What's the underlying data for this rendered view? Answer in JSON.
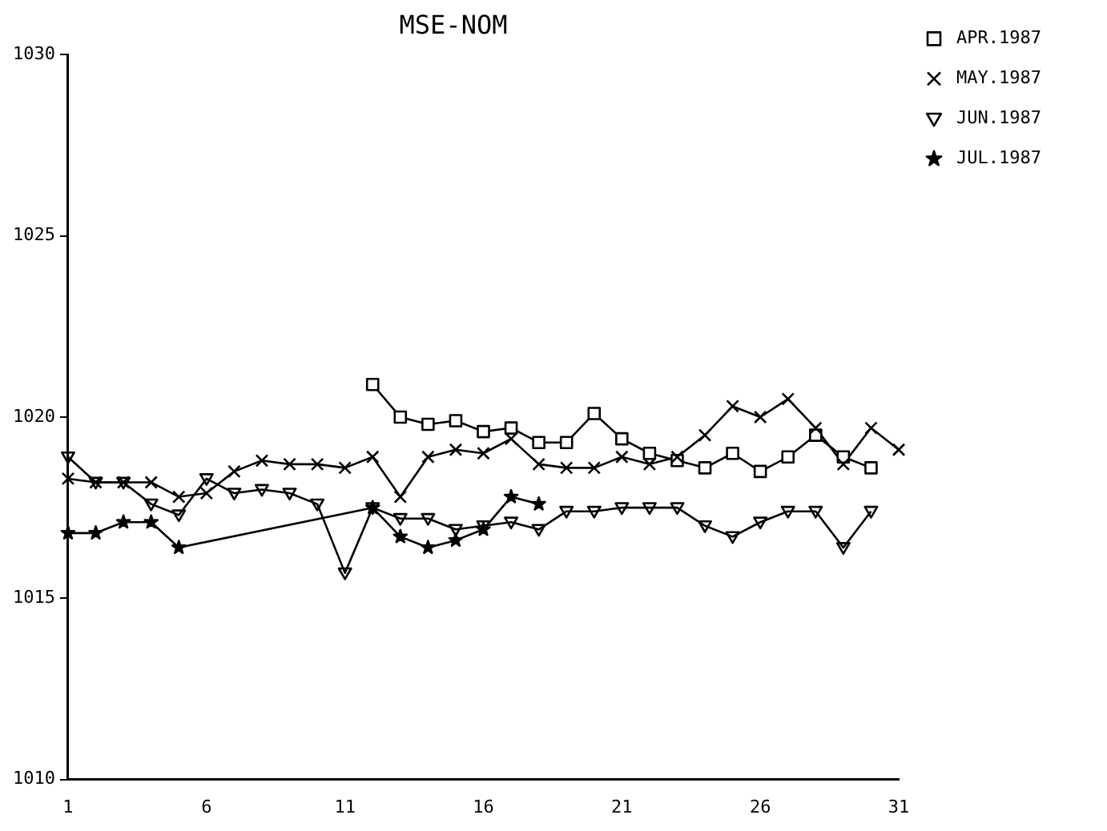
{
  "chart_data": {
    "type": "line",
    "title": "MSE-NOM",
    "xlim": [
      1,
      31
    ],
    "xticks": [
      1,
      6,
      11,
      16,
      21,
      26,
      31
    ],
    "ylim": [
      1010,
      1030
    ],
    "yticks": [
      1010,
      1015,
      1020,
      1025,
      1030
    ],
    "grid": false,
    "legend": "top right",
    "line_style": "solid",
    "series": [
      {
        "name": "APR.1987",
        "color": "#000000",
        "marker": "square",
        "x": [
          12,
          13,
          14,
          15,
          16,
          17,
          18,
          19,
          20,
          21,
          22,
          23,
          24,
          25,
          26,
          27,
          28,
          29,
          30
        ],
        "values": [
          1020.9,
          1020.0,
          1019.8,
          1019.9,
          1019.6,
          1019.7,
          1019.3,
          1019.3,
          1020.1,
          1019.4,
          1019.0,
          1018.8,
          1018.6,
          1019.0,
          1018.5,
          1018.9,
          1019.5,
          1018.9,
          1018.6
        ]
      },
      {
        "name": "MAY.1987",
        "color": "#000000",
        "marker": "cross",
        "x": [
          1,
          2,
          3,
          4,
          5,
          6,
          7,
          8,
          9,
          10,
          11,
          12,
          13,
          14,
          15,
          16,
          17,
          18,
          19,
          20,
          21,
          22,
          23,
          24,
          25,
          26,
          27,
          28,
          29,
          30,
          31
        ],
        "values": [
          1018.3,
          1018.2,
          1018.2,
          1018.2,
          1017.8,
          1017.9,
          1018.5,
          1018.8,
          1018.7,
          1018.7,
          1018.6,
          1018.9,
          1017.8,
          1018.9,
          1019.1,
          1019.0,
          1019.4,
          1018.7,
          1018.6,
          1018.6,
          1018.9,
          1018.7,
          1018.9,
          1019.5,
          1020.3,
          1020.0,
          1020.5,
          1019.7,
          1018.7,
          1019.7,
          1019.1
        ]
      },
      {
        "name": "JUN.1987",
        "color": "#000000",
        "marker": "triangle",
        "x": [
          1,
          2,
          3,
          4,
          5,
          6,
          7,
          8,
          9,
          10,
          11,
          12,
          13,
          14,
          15,
          16,
          17,
          18,
          19,
          20,
          21,
          22,
          23,
          24,
          25,
          26,
          27,
          28,
          29,
          30
        ],
        "values": [
          1018.9,
          1018.2,
          1018.2,
          1017.6,
          1017.3,
          1018.3,
          1017.9,
          1018.0,
          1017.9,
          1017.6,
          1015.7,
          1017.5,
          1017.2,
          1017.2,
          1016.9,
          1017.0,
          1017.1,
          1016.9,
          1017.4,
          1017.4,
          1017.5,
          1017.5,
          1017.5,
          1017.0,
          1016.7,
          1017.1,
          1017.4,
          1017.4,
          1016.4,
          1017.4
        ]
      },
      {
        "name": "JUL.1987",
        "color": "#000000",
        "marker": "star",
        "x": [
          1,
          2,
          3,
          4,
          5,
          12,
          13,
          14,
          15,
          16,
          17,
          18
        ],
        "values": [
          1016.8,
          1016.8,
          1017.1,
          1017.1,
          1016.4,
          1017.5,
          1016.7,
          1016.4,
          1016.6,
          1016.9,
          1017.8,
          1017.6
        ]
      }
    ]
  }
}
